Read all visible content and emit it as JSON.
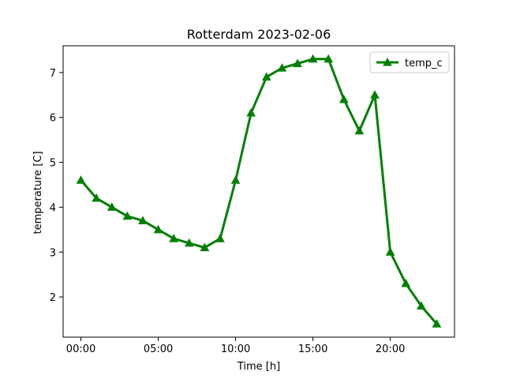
{
  "chart_data": {
    "type": "line",
    "title": "Rotterdam 2023-02-06",
    "xlabel": "Time [h]",
    "ylabel": "temperature [C]",
    "x_tick_labels": [
      "00:00",
      "05:00",
      "10:00",
      "15:00",
      "20:00"
    ],
    "x_tick_values": [
      0,
      5,
      10,
      15,
      20
    ],
    "y_tick_values": [
      2,
      3,
      4,
      5,
      6,
      7
    ],
    "xlim": [
      -1.15,
      24.15
    ],
    "ylim": [
      1.105,
      7.595
    ],
    "grid": false,
    "legend": "top-right",
    "series": [
      {
        "name": "temp_c",
        "color": "#008000",
        "marker": "triangle",
        "x": [
          0,
          1,
          2,
          3,
          4,
          5,
          6,
          7,
          8,
          9,
          10,
          11,
          12,
          13,
          14,
          15,
          16,
          17,
          18,
          19,
          20,
          21,
          22,
          23
        ],
        "values": [
          4.6,
          4.2,
          4.0,
          3.8,
          3.7,
          3.5,
          3.3,
          3.2,
          3.1,
          3.3,
          4.6,
          6.1,
          6.9,
          7.1,
          7.2,
          7.3,
          7.3,
          6.4,
          5.7,
          6.5,
          3.0,
          2.3,
          1.8,
          1.4
        ]
      }
    ]
  }
}
